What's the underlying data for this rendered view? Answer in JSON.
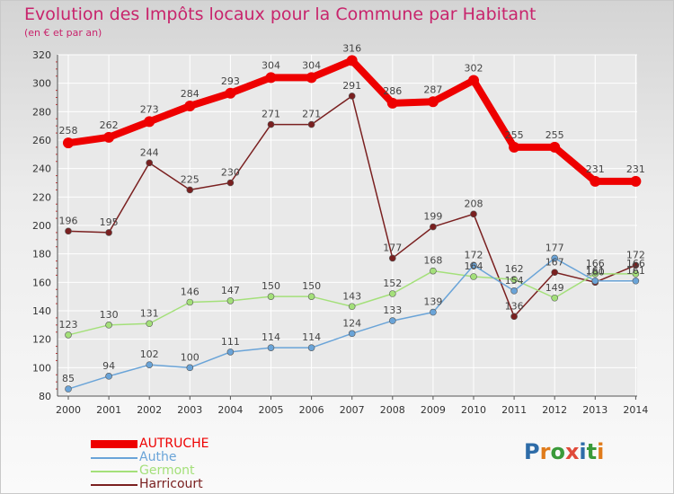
{
  "title": "Evolution des Impôts locaux pour la Commune par Habitant",
  "subtitle": "(en € et par an)",
  "logo": {
    "text": "Proxiti",
    "letter_colors": [
      "#2e6ca8",
      "#e07b1a",
      "#3a9a3a",
      "#e04a3a",
      "#2e6ca8",
      "#3a9a3a",
      "#e07b1a"
    ]
  },
  "colors": {
    "title": "#c8246c",
    "grid": "#ffffff",
    "axis": "#555555",
    "axis_text": "#333333"
  },
  "chart_data": {
    "type": "line",
    "title": "Evolution des Impôts locaux pour la Commune par Habitant",
    "subtitle": "(en € et par an)",
    "x": [
      "2000",
      "2001",
      "2002",
      "2003",
      "2004",
      "2005",
      "2006",
      "2007",
      "2008",
      "2009",
      "2010",
      "2011",
      "2012",
      "2013",
      "2014"
    ],
    "ylim": [
      80,
      320
    ],
    "yticks": [
      80,
      100,
      120,
      140,
      160,
      180,
      200,
      220,
      240,
      260,
      280,
      300,
      320
    ],
    "grid": true,
    "legend_position": "bottom-left",
    "series": [
      {
        "name": "AUTRUCHE",
        "color": "#ee0000",
        "width": 8,
        "point_radius": 6,
        "values": [
          258,
          262,
          273,
          284,
          293,
          304,
          304,
          316,
          286,
          287,
          302,
          255,
          255,
          231,
          231
        ],
        "labels": [
          "258",
          "262",
          "273",
          "284",
          "293",
          "304",
          "304",
          "316",
          "286",
          "287",
          "302",
          "255",
          "255",
          "231",
          "231"
        ]
      },
      {
        "name": "Authe",
        "color": "#6aa4d8",
        "width": 1.5,
        "point_radius": 3.5,
        "values": [
          85,
          94,
          102,
          100,
          111,
          114,
          114,
          124,
          133,
          139,
          172,
          154,
          177,
          161,
          161
        ],
        "labels": [
          "85",
          "94",
          "102",
          "100",
          "111",
          "114",
          "114",
          "124",
          "133",
          "139",
          "172",
          "154",
          "177",
          "161",
          "161"
        ]
      },
      {
        "name": "Germont",
        "color": "#a4e07a",
        "width": 1.5,
        "point_radius": 3.5,
        "values": [
          123,
          130,
          131,
          146,
          147,
          150,
          150,
          143,
          152,
          168,
          164,
          162,
          149,
          166,
          166
        ],
        "labels": [
          "123",
          "130",
          "131",
          "146",
          "147",
          "150",
          "150",
          "143",
          "152",
          "168",
          "164",
          "162",
          "149",
          "166",
          "166"
        ]
      },
      {
        "name": "Harricourt",
        "color": "#7a2020",
        "width": 1.5,
        "point_radius": 3.5,
        "values": [
          196,
          195,
          244,
          225,
          230,
          271,
          271,
          291,
          177,
          199,
          208,
          136,
          167,
          160,
          172
        ],
        "labels": [
          "196",
          "195",
          "244",
          "225",
          "230",
          "271",
          "271",
          "291",
          "177",
          "199",
          "208",
          "136",
          "167",
          "160",
          "172"
        ]
      }
    ]
  }
}
